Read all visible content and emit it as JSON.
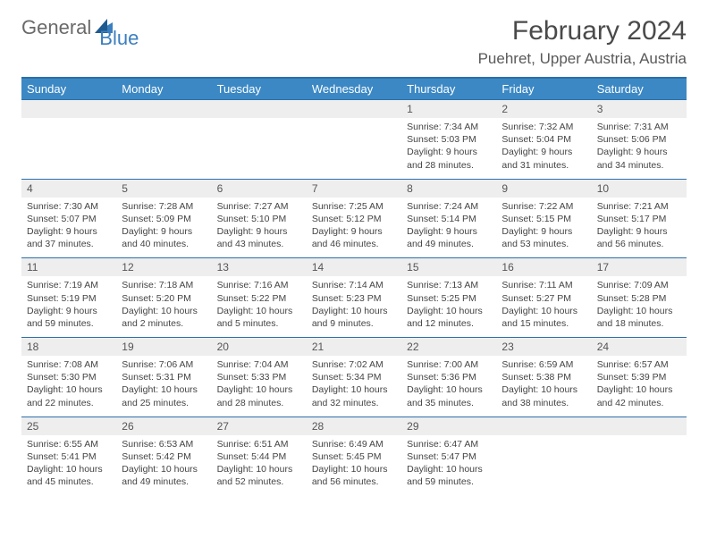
{
  "logo": {
    "text1": "General",
    "text2": "Blue"
  },
  "title": "February 2024",
  "location": "Puehret, Upper Austria, Austria",
  "colors": {
    "header_bg": "#3b88c4",
    "border": "#2c6fa8",
    "daynum_bg": "#eeeeee",
    "text": "#444444",
    "logo_gray": "#6a6a6a",
    "logo_blue": "#3b7fbf"
  },
  "days_of_week": [
    "Sunday",
    "Monday",
    "Tuesday",
    "Wednesday",
    "Thursday",
    "Friday",
    "Saturday"
  ],
  "weeks": [
    [
      null,
      null,
      null,
      null,
      {
        "n": "1",
        "sr": "Sunrise: 7:34 AM",
        "ss": "Sunset: 5:03 PM",
        "dl1": "Daylight: 9 hours",
        "dl2": "and 28 minutes."
      },
      {
        "n": "2",
        "sr": "Sunrise: 7:32 AM",
        "ss": "Sunset: 5:04 PM",
        "dl1": "Daylight: 9 hours",
        "dl2": "and 31 minutes."
      },
      {
        "n": "3",
        "sr": "Sunrise: 7:31 AM",
        "ss": "Sunset: 5:06 PM",
        "dl1": "Daylight: 9 hours",
        "dl2": "and 34 minutes."
      }
    ],
    [
      {
        "n": "4",
        "sr": "Sunrise: 7:30 AM",
        "ss": "Sunset: 5:07 PM",
        "dl1": "Daylight: 9 hours",
        "dl2": "and 37 minutes."
      },
      {
        "n": "5",
        "sr": "Sunrise: 7:28 AM",
        "ss": "Sunset: 5:09 PM",
        "dl1": "Daylight: 9 hours",
        "dl2": "and 40 minutes."
      },
      {
        "n": "6",
        "sr": "Sunrise: 7:27 AM",
        "ss": "Sunset: 5:10 PM",
        "dl1": "Daylight: 9 hours",
        "dl2": "and 43 minutes."
      },
      {
        "n": "7",
        "sr": "Sunrise: 7:25 AM",
        "ss": "Sunset: 5:12 PM",
        "dl1": "Daylight: 9 hours",
        "dl2": "and 46 minutes."
      },
      {
        "n": "8",
        "sr": "Sunrise: 7:24 AM",
        "ss": "Sunset: 5:14 PM",
        "dl1": "Daylight: 9 hours",
        "dl2": "and 49 minutes."
      },
      {
        "n": "9",
        "sr": "Sunrise: 7:22 AM",
        "ss": "Sunset: 5:15 PM",
        "dl1": "Daylight: 9 hours",
        "dl2": "and 53 minutes."
      },
      {
        "n": "10",
        "sr": "Sunrise: 7:21 AM",
        "ss": "Sunset: 5:17 PM",
        "dl1": "Daylight: 9 hours",
        "dl2": "and 56 minutes."
      }
    ],
    [
      {
        "n": "11",
        "sr": "Sunrise: 7:19 AM",
        "ss": "Sunset: 5:19 PM",
        "dl1": "Daylight: 9 hours",
        "dl2": "and 59 minutes."
      },
      {
        "n": "12",
        "sr": "Sunrise: 7:18 AM",
        "ss": "Sunset: 5:20 PM",
        "dl1": "Daylight: 10 hours",
        "dl2": "and 2 minutes."
      },
      {
        "n": "13",
        "sr": "Sunrise: 7:16 AM",
        "ss": "Sunset: 5:22 PM",
        "dl1": "Daylight: 10 hours",
        "dl2": "and 5 minutes."
      },
      {
        "n": "14",
        "sr": "Sunrise: 7:14 AM",
        "ss": "Sunset: 5:23 PM",
        "dl1": "Daylight: 10 hours",
        "dl2": "and 9 minutes."
      },
      {
        "n": "15",
        "sr": "Sunrise: 7:13 AM",
        "ss": "Sunset: 5:25 PM",
        "dl1": "Daylight: 10 hours",
        "dl2": "and 12 minutes."
      },
      {
        "n": "16",
        "sr": "Sunrise: 7:11 AM",
        "ss": "Sunset: 5:27 PM",
        "dl1": "Daylight: 10 hours",
        "dl2": "and 15 minutes."
      },
      {
        "n": "17",
        "sr": "Sunrise: 7:09 AM",
        "ss": "Sunset: 5:28 PM",
        "dl1": "Daylight: 10 hours",
        "dl2": "and 18 minutes."
      }
    ],
    [
      {
        "n": "18",
        "sr": "Sunrise: 7:08 AM",
        "ss": "Sunset: 5:30 PM",
        "dl1": "Daylight: 10 hours",
        "dl2": "and 22 minutes."
      },
      {
        "n": "19",
        "sr": "Sunrise: 7:06 AM",
        "ss": "Sunset: 5:31 PM",
        "dl1": "Daylight: 10 hours",
        "dl2": "and 25 minutes."
      },
      {
        "n": "20",
        "sr": "Sunrise: 7:04 AM",
        "ss": "Sunset: 5:33 PM",
        "dl1": "Daylight: 10 hours",
        "dl2": "and 28 minutes."
      },
      {
        "n": "21",
        "sr": "Sunrise: 7:02 AM",
        "ss": "Sunset: 5:34 PM",
        "dl1": "Daylight: 10 hours",
        "dl2": "and 32 minutes."
      },
      {
        "n": "22",
        "sr": "Sunrise: 7:00 AM",
        "ss": "Sunset: 5:36 PM",
        "dl1": "Daylight: 10 hours",
        "dl2": "and 35 minutes."
      },
      {
        "n": "23",
        "sr": "Sunrise: 6:59 AM",
        "ss": "Sunset: 5:38 PM",
        "dl1": "Daylight: 10 hours",
        "dl2": "and 38 minutes."
      },
      {
        "n": "24",
        "sr": "Sunrise: 6:57 AM",
        "ss": "Sunset: 5:39 PM",
        "dl1": "Daylight: 10 hours",
        "dl2": "and 42 minutes."
      }
    ],
    [
      {
        "n": "25",
        "sr": "Sunrise: 6:55 AM",
        "ss": "Sunset: 5:41 PM",
        "dl1": "Daylight: 10 hours",
        "dl2": "and 45 minutes."
      },
      {
        "n": "26",
        "sr": "Sunrise: 6:53 AM",
        "ss": "Sunset: 5:42 PM",
        "dl1": "Daylight: 10 hours",
        "dl2": "and 49 minutes."
      },
      {
        "n": "27",
        "sr": "Sunrise: 6:51 AM",
        "ss": "Sunset: 5:44 PM",
        "dl1": "Daylight: 10 hours",
        "dl2": "and 52 minutes."
      },
      {
        "n": "28",
        "sr": "Sunrise: 6:49 AM",
        "ss": "Sunset: 5:45 PM",
        "dl1": "Daylight: 10 hours",
        "dl2": "and 56 minutes."
      },
      {
        "n": "29",
        "sr": "Sunrise: 6:47 AM",
        "ss": "Sunset: 5:47 PM",
        "dl1": "Daylight: 10 hours",
        "dl2": "and 59 minutes."
      },
      null,
      null
    ]
  ]
}
